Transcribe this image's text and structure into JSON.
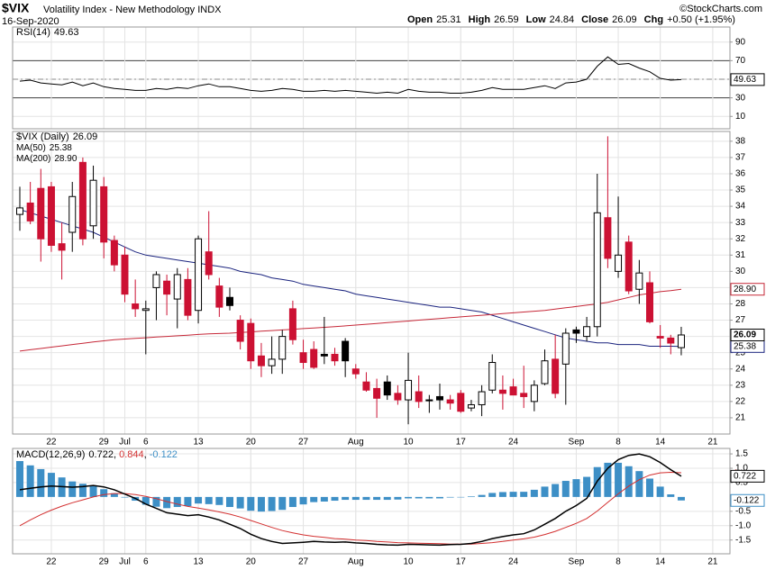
{
  "header": {
    "symbol": "$VIX",
    "name": "Volatility Index - New Methodology INDX",
    "date": "16-Sep-2020",
    "copyright": "©StockCharts.com",
    "quote": [
      {
        "label": "Open",
        "value": 25.31
      },
      {
        "label": "High",
        "value": 26.59
      },
      {
        "label": "Low",
        "value": 24.84
      },
      {
        "label": "Close",
        "value": 26.09
      },
      {
        "label": "Chg",
        "value": "+0.50 (+1.95%)"
      }
    ]
  },
  "chart_data": [
    {
      "type": "line",
      "name": "RSI(14)",
      "color": "#000000",
      "values": [
        48,
        49,
        46,
        45,
        44,
        47,
        43,
        46,
        42,
        40,
        39,
        38,
        38,
        40,
        39,
        41,
        40,
        43,
        45,
        42,
        42,
        40,
        38,
        37,
        38,
        40,
        39,
        37,
        37,
        38,
        37,
        38,
        37,
        36,
        35,
        36,
        35,
        39,
        37,
        36,
        36,
        35,
        35,
        36,
        38,
        41,
        39,
        39,
        39,
        41,
        43,
        40,
        46,
        47,
        50,
        64,
        74,
        66,
        67,
        62,
        58,
        51,
        49,
        49.63
      ],
      "ylim": [
        -3.3,
        106.2
      ],
      "yticks": [
        10,
        30,
        50,
        70,
        90
      ],
      "reference_lines": [
        70,
        50,
        30
      ],
      "grid": true
    },
    {
      "type": "candlestick",
      "name": "$VIX (Daily)",
      "up_color": "#000000",
      "down_color": "#cc1133",
      "categories": [
        null,
        null,
        null,
        "22",
        null,
        null,
        null,
        null,
        "29",
        null,
        "Jul",
        null,
        "6",
        null,
        null,
        null,
        null,
        "13",
        null,
        null,
        null,
        null,
        "20",
        null,
        null,
        null,
        null,
        "27",
        null,
        null,
        null,
        null,
        "Aug",
        null,
        null,
        null,
        null,
        "10",
        null,
        null,
        null,
        null,
        "17",
        null,
        null,
        null,
        null,
        "24",
        null,
        null,
        null,
        null,
        null,
        "Sep",
        null,
        null,
        null,
        "8",
        null,
        null,
        null,
        "14",
        null,
        null,
        null,
        null,
        "21"
      ],
      "open": [
        33.5,
        34.2,
        35.1,
        35.2,
        31.7,
        32.4,
        36.7,
        32.8,
        35.2,
        31.9,
        31.0,
        28.0,
        27.6,
        29.0,
        29.4,
        28.3,
        29.5,
        27.6,
        31.2,
        29.1,
        28.4,
        27.0,
        26.8,
        24.8,
        24.2,
        24.6,
        27.7,
        25.0,
        25.2,
        24.9,
        24.9,
        25.7,
        24.0,
        23.2,
        22.8,
        23.2,
        22.5,
        22.1,
        22.6,
        22.1,
        22.3,
        22.1,
        22.5,
        21.6,
        21.8,
        22.7,
        22.7,
        22.9,
        22.5,
        22.0,
        23.1,
        24.6,
        24.3,
        26.4,
        26.0,
        26.6,
        33.3,
        30.0,
        31.8,
        28.9,
        29.3,
        26.0,
        25.9,
        25.31,
        null,
        null,
        null
      ],
      "high": [
        35.2,
        35.5,
        36.3,
        35.5,
        33.0,
        35.5,
        37.0,
        36.5,
        35.8,
        32.2,
        31.5,
        29.5,
        28.2,
        30.0,
        29.8,
        30.2,
        30.2,
        32.2,
        33.7,
        29.6,
        29.0,
        27.3,
        27.1,
        25.6,
        26.0,
        26.4,
        28.2,
        25.8,
        25.7,
        27.2,
        25.3,
        25.9,
        24.3,
        23.8,
        23.4,
        23.6,
        23.0,
        25.0,
        23.6,
        22.4,
        23.1,
        22.4,
        22.7,
        22.1,
        23.0,
        24.9,
        23.6,
        23.4,
        24.2,
        23.3,
        25.2,
        26.1,
        26.5,
        26.6,
        27.2,
        36.0,
        38.3,
        34.6,
        32.2,
        30.7,
        30.0,
        26.7,
        26.1,
        26.59,
        null,
        null,
        null
      ],
      "low": [
        32.5,
        32.9,
        30.6,
        31.2,
        29.5,
        31.2,
        31.6,
        32.0,
        30.8,
        30.0,
        28.1,
        27.2,
        24.9,
        27.0,
        27.3,
        26.5,
        27.0,
        26.8,
        29.5,
        27.2,
        27.6,
        25.2,
        24.0,
        23.5,
        23.7,
        23.7,
        25.5,
        24.0,
        24.0,
        24.3,
        24.2,
        23.5,
        23.4,
        22.6,
        21.0,
        22.1,
        21.8,
        20.6,
        21.6,
        21.3,
        21.5,
        21.5,
        21.3,
        21.4,
        21.1,
        22.5,
        21.5,
        22.4,
        21.6,
        21.4,
        23.0,
        22.2,
        21.8,
        25.6,
        25.7,
        26.0,
        30.2,
        29.6,
        28.6,
        28.0,
        26.8,
        25.3,
        24.9,
        24.84,
        null,
        null,
        null
      ],
      "close": [
        33.9,
        33.1,
        32.0,
        31.6,
        31.3,
        34.6,
        32.0,
        35.6,
        31.8,
        30.4,
        28.6,
        27.7,
        27.7,
        29.8,
        28.6,
        29.8,
        27.3,
        32.0,
        29.8,
        27.8,
        27.9,
        25.7,
        24.5,
        24.2,
        24.6,
        26.0,
        25.8,
        24.4,
        24.1,
        24.8,
        24.5,
        24.5,
        23.7,
        22.7,
        22.2,
        22.4,
        22.1,
        23.3,
        22.0,
        22.1,
        22.1,
        21.9,
        21.4,
        21.8,
        22.6,
        24.4,
        22.5,
        22.4,
        22.3,
        23.0,
        24.5,
        22.5,
        26.2,
        26.2,
        26.6,
        33.6,
        30.8,
        31.0,
        28.8,
        29.9,
        26.9,
        25.9,
        25.59,
        26.09,
        null,
        null,
        null
      ],
      "series": [
        {
          "name": "MA(50)",
          "color": "#1a237e",
          "values": [
            33.8,
            33.6,
            33.4,
            33.2,
            33.0,
            32.8,
            32.6,
            32.4,
            32.1,
            31.8,
            31.5,
            31.2,
            31.0,
            30.9,
            30.8,
            30.7,
            30.6,
            30.5,
            30.4,
            30.3,
            30.2,
            30.0,
            29.9,
            29.8,
            29.6,
            29.5,
            29.4,
            29.2,
            29.1,
            29.0,
            28.9,
            28.8,
            28.6,
            28.5,
            28.4,
            28.3,
            28.2,
            28.1,
            28.0,
            27.9,
            27.8,
            27.8,
            27.7,
            27.6,
            27.5,
            27.3,
            27.1,
            26.9,
            26.7,
            26.5,
            26.3,
            26.1,
            25.9,
            25.8,
            25.7,
            25.6,
            25.6,
            25.5,
            25.5,
            25.5,
            25.4,
            25.4,
            25.4,
            25.38,
            null,
            null,
            null
          ]
        },
        {
          "name": "MA(200)",
          "color": "#c62838",
          "last_label": "28.90",
          "values": [
            25.1,
            25.18,
            25.26,
            25.34,
            25.42,
            25.5,
            25.58,
            25.66,
            25.73,
            25.8,
            25.84,
            25.88,
            25.92,
            25.96,
            26.0,
            26.04,
            26.08,
            26.12,
            26.16,
            26.18,
            26.2,
            26.24,
            26.28,
            26.32,
            26.36,
            26.4,
            26.44,
            26.48,
            26.52,
            26.56,
            26.6,
            26.65,
            26.7,
            26.75,
            26.8,
            26.85,
            26.9,
            26.95,
            27.0,
            27.05,
            27.1,
            27.15,
            27.2,
            27.25,
            27.3,
            27.35,
            27.4,
            27.45,
            27.5,
            27.55,
            27.6,
            27.68,
            27.76,
            27.84,
            27.92,
            28.0,
            28.1,
            28.25,
            28.4,
            28.55,
            28.65,
            28.75,
            28.82,
            28.9,
            null,
            null,
            null
          ]
        }
      ],
      "ylim": [
        20,
        38.6
      ],
      "yticks": [
        21,
        22,
        23,
        24,
        25,
        26,
        27,
        28,
        29,
        30,
        31,
        32,
        33,
        34,
        35,
        36,
        37,
        38
      ],
      "grid": true
    },
    {
      "type": "macd",
      "name": "MACD(12,26,9)",
      "legend_separator": ", ",
      "categories": [
        null,
        null,
        null,
        "22",
        null,
        null,
        null,
        null,
        "29",
        null,
        "Jul",
        null,
        "6",
        null,
        null,
        null,
        null,
        "13",
        null,
        null,
        null,
        null,
        "20",
        null,
        null,
        null,
        null,
        "27",
        null,
        null,
        null,
        null,
        "Aug",
        null,
        null,
        null,
        null,
        "10",
        null,
        null,
        null,
        null,
        "17",
        null,
        null,
        null,
        null,
        "24",
        null,
        null,
        null,
        null,
        null,
        "Sep",
        null,
        null,
        null,
        "8",
        null,
        null,
        null,
        "14",
        null,
        null,
        null,
        null,
        "21"
      ],
      "series": [
        {
          "name": "MACD",
          "color": "#000000",
          "values": [
            0.25,
            0.3,
            0.35,
            0.38,
            0.36,
            0.34,
            0.36,
            0.4,
            0.35,
            0.25,
            0.1,
            -0.05,
            -0.25,
            -0.4,
            -0.55,
            -0.6,
            -0.65,
            -0.62,
            -0.7,
            -0.8,
            -0.95,
            -1.1,
            -1.3,
            -1.45,
            -1.55,
            -1.62,
            -1.6,
            -1.58,
            -1.55,
            -1.57,
            -1.58,
            -1.57,
            -1.6,
            -1.62,
            -1.65,
            -1.67,
            -1.68,
            -1.65,
            -1.66,
            -1.67,
            -1.68,
            -1.66,
            -1.65,
            -1.62,
            -1.55,
            -1.45,
            -1.38,
            -1.32,
            -1.28,
            -1.15,
            -0.95,
            -0.75,
            -0.5,
            -0.3,
            -0.05,
            0.55,
            1.0,
            1.3,
            1.45,
            1.5,
            1.4,
            1.2,
            0.95,
            0.722,
            null,
            null,
            null
          ]
        },
        {
          "name": "Signal",
          "color": "#d32f2f",
          "values": [
            -1.0,
            -0.8,
            -0.62,
            -0.46,
            -0.32,
            -0.2,
            -0.1,
            0.0,
            0.08,
            0.12,
            0.12,
            0.08,
            0.02,
            -0.06,
            -0.16,
            -0.25,
            -0.33,
            -0.39,
            -0.45,
            -0.52,
            -0.6,
            -0.7,
            -0.82,
            -0.94,
            -1.06,
            -1.17,
            -1.25,
            -1.32,
            -1.37,
            -1.41,
            -1.45,
            -1.47,
            -1.5,
            -1.52,
            -1.55,
            -1.57,
            -1.59,
            -1.6,
            -1.61,
            -1.62,
            -1.63,
            -1.64,
            -1.64,
            -1.64,
            -1.62,
            -1.59,
            -1.55,
            -1.5,
            -1.46,
            -1.4,
            -1.31,
            -1.2,
            -1.06,
            -0.92,
            -0.75,
            -0.49,
            -0.19,
            0.11,
            0.38,
            0.6,
            0.76,
            0.84,
            0.86,
            0.844,
            null,
            null,
            null
          ]
        },
        {
          "name": "Histogram",
          "color": "#3d8fc6",
          "values": [
            1.25,
            1.1,
            0.97,
            0.84,
            0.68,
            0.54,
            0.46,
            0.4,
            0.27,
            0.13,
            -0.02,
            -0.13,
            -0.27,
            -0.34,
            -0.39,
            -0.35,
            -0.32,
            -0.23,
            -0.25,
            -0.28,
            -0.35,
            -0.4,
            -0.48,
            -0.51,
            -0.49,
            -0.45,
            -0.35,
            -0.26,
            -0.18,
            -0.16,
            -0.13,
            -0.1,
            -0.1,
            -0.1,
            -0.1,
            -0.1,
            -0.09,
            -0.05,
            -0.05,
            -0.05,
            -0.05,
            -0.02,
            -0.01,
            0.02,
            0.07,
            0.14,
            0.17,
            0.18,
            0.18,
            0.25,
            0.36,
            0.45,
            0.56,
            0.62,
            0.7,
            1.04,
            1.19,
            1.19,
            1.07,
            0.9,
            0.64,
            0.36,
            0.09,
            -0.122,
            null,
            null,
            null
          ]
        }
      ],
      "ylim": [
        -1.98,
        1.69
      ],
      "yticks": [
        1.5,
        {
          "value": 1,
          "label": "1.0"
        },
        0.5,
        -0.5,
        {
          "value": -1,
          "label": "-1.0"
        },
        -1.5
      ],
      "grid": true
    }
  ]
}
